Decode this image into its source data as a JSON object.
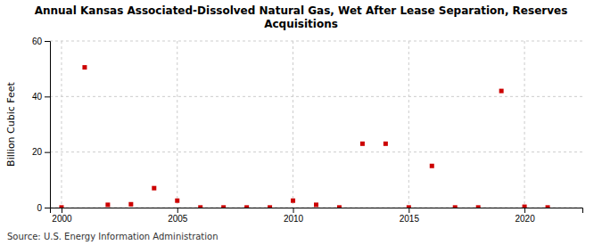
{
  "chart_data": {
    "type": "scatter",
    "title": "Annual Kansas Associated-Dissolved Natural Gas, Wet After Lease Separation, Reserves\nAcquisitions",
    "ylabel": "Billion Cubic Feet",
    "source": "Source: U.S. Energy Information Administration",
    "x": [
      2000,
      2001,
      2002,
      2003,
      2004,
      2005,
      2006,
      2007,
      2008,
      2009,
      2010,
      2011,
      2012,
      2013,
      2014,
      2015,
      2016,
      2017,
      2018,
      2019,
      2020,
      2021
    ],
    "values": [
      0.05,
      50.5,
      1.0,
      1.2,
      7.0,
      2.5,
      0.05,
      0.05,
      0.05,
      0.05,
      2.5,
      1.0,
      0.05,
      23.0,
      23.0,
      0.05,
      15.0,
      0.05,
      0.05,
      42.0,
      0.3,
      0.05
    ],
    "color": "#cc0000",
    "marker": "square",
    "xlim": [
      1999.5,
      2022.5
    ],
    "ylim": [
      0,
      60
    ],
    "xticks": [
      2000,
      2005,
      2010,
      2015,
      2020
    ],
    "yticks": [
      0,
      20,
      40,
      60
    ],
    "grid": true
  }
}
